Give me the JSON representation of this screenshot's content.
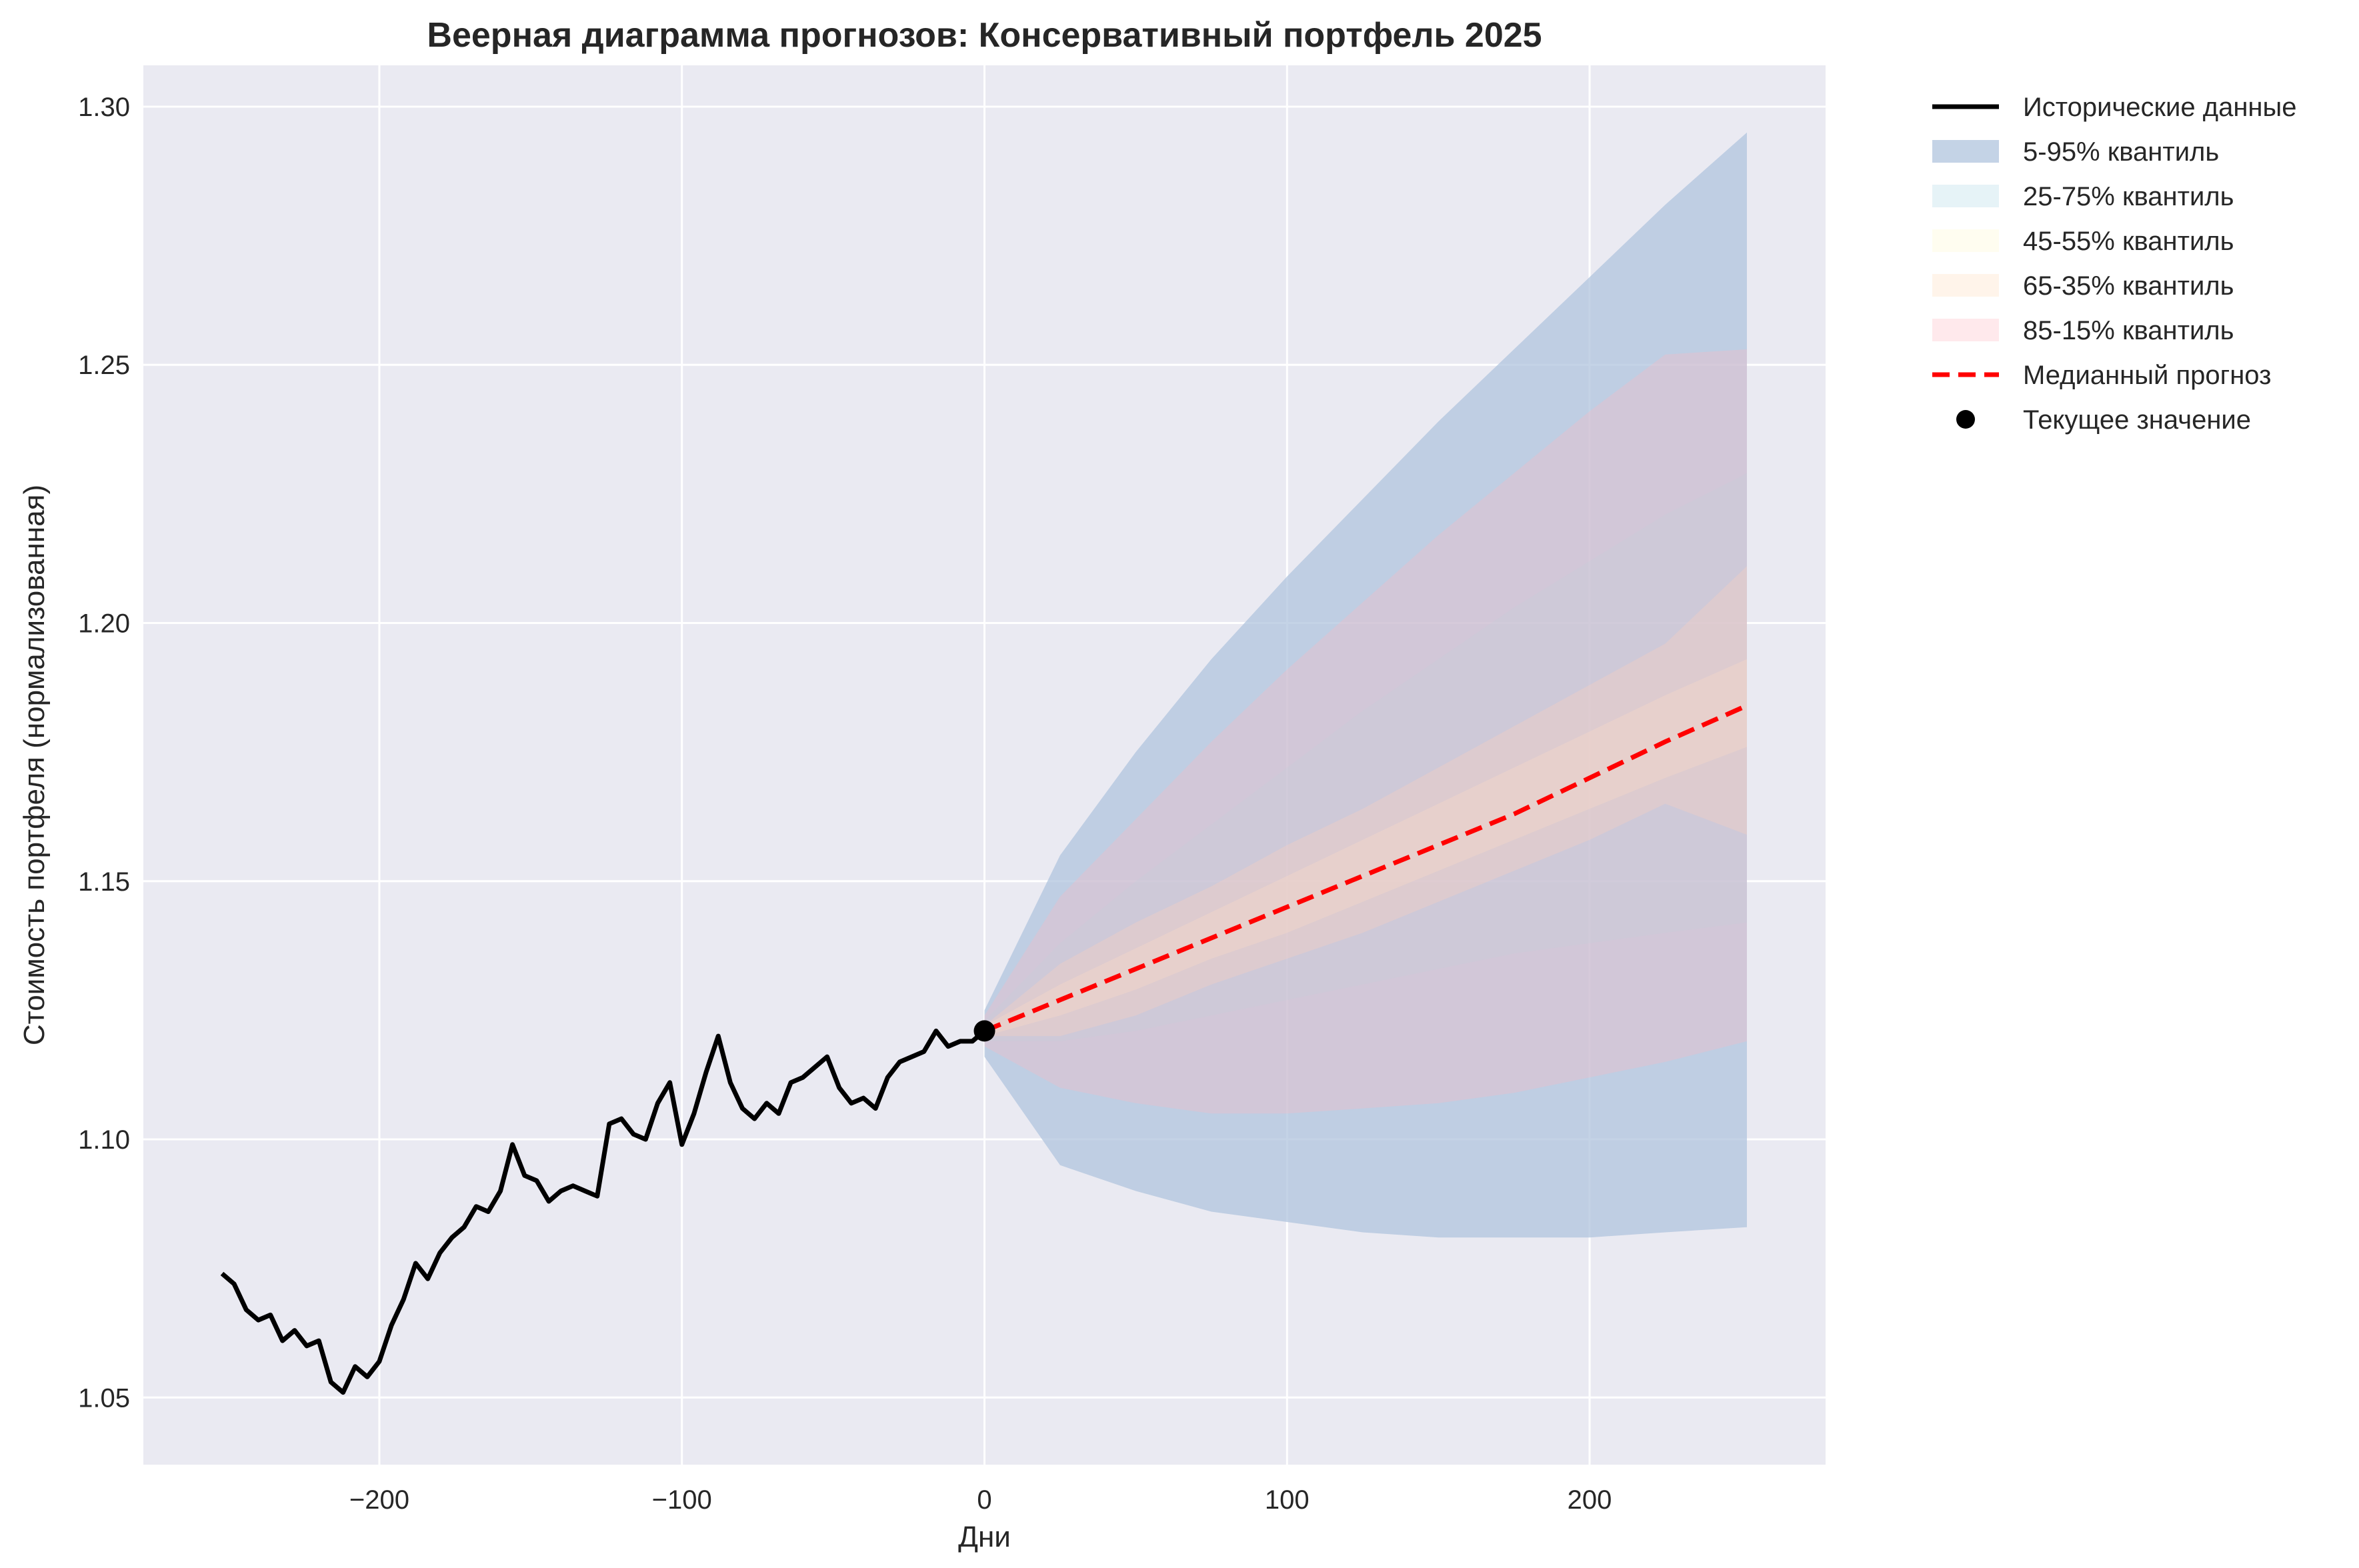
{
  "chart_data": {
    "type": "line",
    "title": "Веерная диаграмма прогнозов: Консервативный портфель 2025",
    "xlabel": "Дни",
    "ylabel": "Стоимость портфеля (нормализованная)",
    "xlim": [
      -278,
      278
    ],
    "ylim": [
      1.037,
      1.308
    ],
    "xticks": [
      -200,
      -100,
      0,
      100,
      200
    ],
    "xtick_labels": [
      "−200",
      "−100",
      "0",
      "100",
      "200"
    ],
    "yticks": [
      1.05,
      1.1,
      1.15,
      1.2,
      1.25,
      1.3
    ],
    "ytick_labels": [
      "1.05",
      "1.10",
      "1.15",
      "1.20",
      "1.25",
      "1.30"
    ],
    "grid": true,
    "legend_position": "outside-right-top",
    "colors": {
      "background": "#eaeaf2",
      "grid": "#ffffff",
      "historical": "#000000",
      "median": "#ff0000",
      "band_5_95": "#b0c4de",
      "band_25_75": "#add8e6",
      "band_45_55": "#fffacd",
      "band_65_35": "#ffdab9",
      "band_85_15": "#ffb6c1"
    },
    "historical": {
      "name": "Исторические данные",
      "x": [
        -252,
        -248,
        -244,
        -240,
        -236,
        -232,
        -228,
        -224,
        -220,
        -216,
        -212,
        -208,
        -204,
        -200,
        -196,
        -192,
        -188,
        -184,
        -180,
        -176,
        -172,
        -168,
        -164,
        -160,
        -156,
        -152,
        -148,
        -144,
        -140,
        -136,
        -132,
        -128,
        -124,
        -120,
        -116,
        -112,
        -108,
        -104,
        -100,
        -96,
        -92,
        -88,
        -84,
        -80,
        -76,
        -72,
        -68,
        -64,
        -60,
        -56,
        -52,
        -48,
        -44,
        -40,
        -36,
        -32,
        -28,
        -24,
        -20,
        -16,
        -12,
        -8,
        -4,
        0
      ],
      "y": [
        1.074,
        1.072,
        1.067,
        1.065,
        1.066,
        1.061,
        1.063,
        1.06,
        1.061,
        1.053,
        1.051,
        1.056,
        1.054,
        1.057,
        1.064,
        1.069,
        1.076,
        1.073,
        1.078,
        1.081,
        1.083,
        1.087,
        1.086,
        1.09,
        1.099,
        1.093,
        1.092,
        1.088,
        1.09,
        1.091,
        1.09,
        1.089,
        1.103,
        1.104,
        1.101,
        1.1,
        1.107,
        1.111,
        1.099,
        1.105,
        1.113,
        1.12,
        1.111,
        1.106,
        1.104,
        1.107,
        1.105,
        1.111,
        1.112,
        1.114,
        1.116,
        1.11,
        1.107,
        1.108,
        1.106,
        1.112,
        1.115,
        1.116,
        1.117,
        1.121,
        1.118,
        1.119,
        1.119,
        1.121
      ]
    },
    "forecast": {
      "x": [
        0,
        25,
        50,
        75,
        100,
        125,
        150,
        175,
        200,
        225,
        252
      ],
      "median": {
        "name": "Медианный прогноз",
        "values": [
          1.121,
          1.127,
          1.133,
          1.139,
          1.145,
          1.151,
          1.157,
          1.163,
          1.17,
          1.177,
          1.184
        ]
      },
      "bands": [
        {
          "name": "5-95% квантиль",
          "lower": [
            1.116,
            1.095,
            1.09,
            1.086,
            1.084,
            1.082,
            1.081,
            1.081,
            1.081,
            1.082,
            1.083
          ],
          "upper": [
            1.125,
            1.155,
            1.175,
            1.193,
            1.209,
            1.224,
            1.239,
            1.253,
            1.267,
            1.281,
            1.295
          ]
        },
        {
          "name": "25-75% квантиль",
          "lower": [
            1.119,
            1.119,
            1.121,
            1.124,
            1.127,
            1.13,
            1.133,
            1.136,
            1.138,
            1.14,
            1.142
          ],
          "upper": [
            1.123,
            1.138,
            1.15,
            1.161,
            1.172,
            1.183,
            1.193,
            1.203,
            1.212,
            1.221,
            1.229
          ]
        },
        {
          "name": "45-55% квантиль",
          "lower": [
            1.12,
            1.124,
            1.129,
            1.135,
            1.14,
            1.146,
            1.152,
            1.158,
            1.164,
            1.17,
            1.176
          ],
          "upper": [
            1.122,
            1.13,
            1.137,
            1.144,
            1.151,
            1.158,
            1.165,
            1.172,
            1.179,
            1.186,
            1.193
          ]
        },
        {
          "name": "65-35% квантиль",
          "lower": [
            1.12,
            1.12,
            1.124,
            1.13,
            1.135,
            1.14,
            1.146,
            1.152,
            1.158,
            1.165,
            1.159
          ],
          "upper": [
            1.122,
            1.134,
            1.142,
            1.149,
            1.157,
            1.164,
            1.172,
            1.18,
            1.188,
            1.196,
            1.211
          ]
        },
        {
          "name": "85-15% квантиль",
          "lower": [
            1.118,
            1.11,
            1.107,
            1.105,
            1.105,
            1.106,
            1.107,
            1.109,
            1.112,
            1.115,
            1.119
          ],
          "upper": [
            1.124,
            1.147,
            1.162,
            1.177,
            1.191,
            1.204,
            1.217,
            1.229,
            1.241,
            1.252,
            1.253
          ]
        }
      ]
    },
    "current_point": {
      "name": "Текущее значение",
      "x": 0,
      "y": 1.121
    },
    "legend": [
      {
        "label": "Исторические данные",
        "kind": "line",
        "color": "#000000"
      },
      {
        "label": "5-95% квантиль",
        "kind": "patch",
        "color": "#b0c4de"
      },
      {
        "label": "25-75% квантиль",
        "kind": "patch",
        "color": "#add8e6"
      },
      {
        "label": "45-55% квантиль",
        "kind": "patch",
        "color": "#fffacd"
      },
      {
        "label": "65-35% квантиль",
        "kind": "patch",
        "color": "#ffdab9"
      },
      {
        "label": "85-15% квантиль",
        "kind": "patch",
        "color": "#ffb6c1"
      },
      {
        "label": "Медианный прогноз",
        "kind": "dashed",
        "color": "#ff0000"
      },
      {
        "label": "Текущее значение",
        "kind": "marker",
        "color": "#000000"
      }
    ]
  }
}
